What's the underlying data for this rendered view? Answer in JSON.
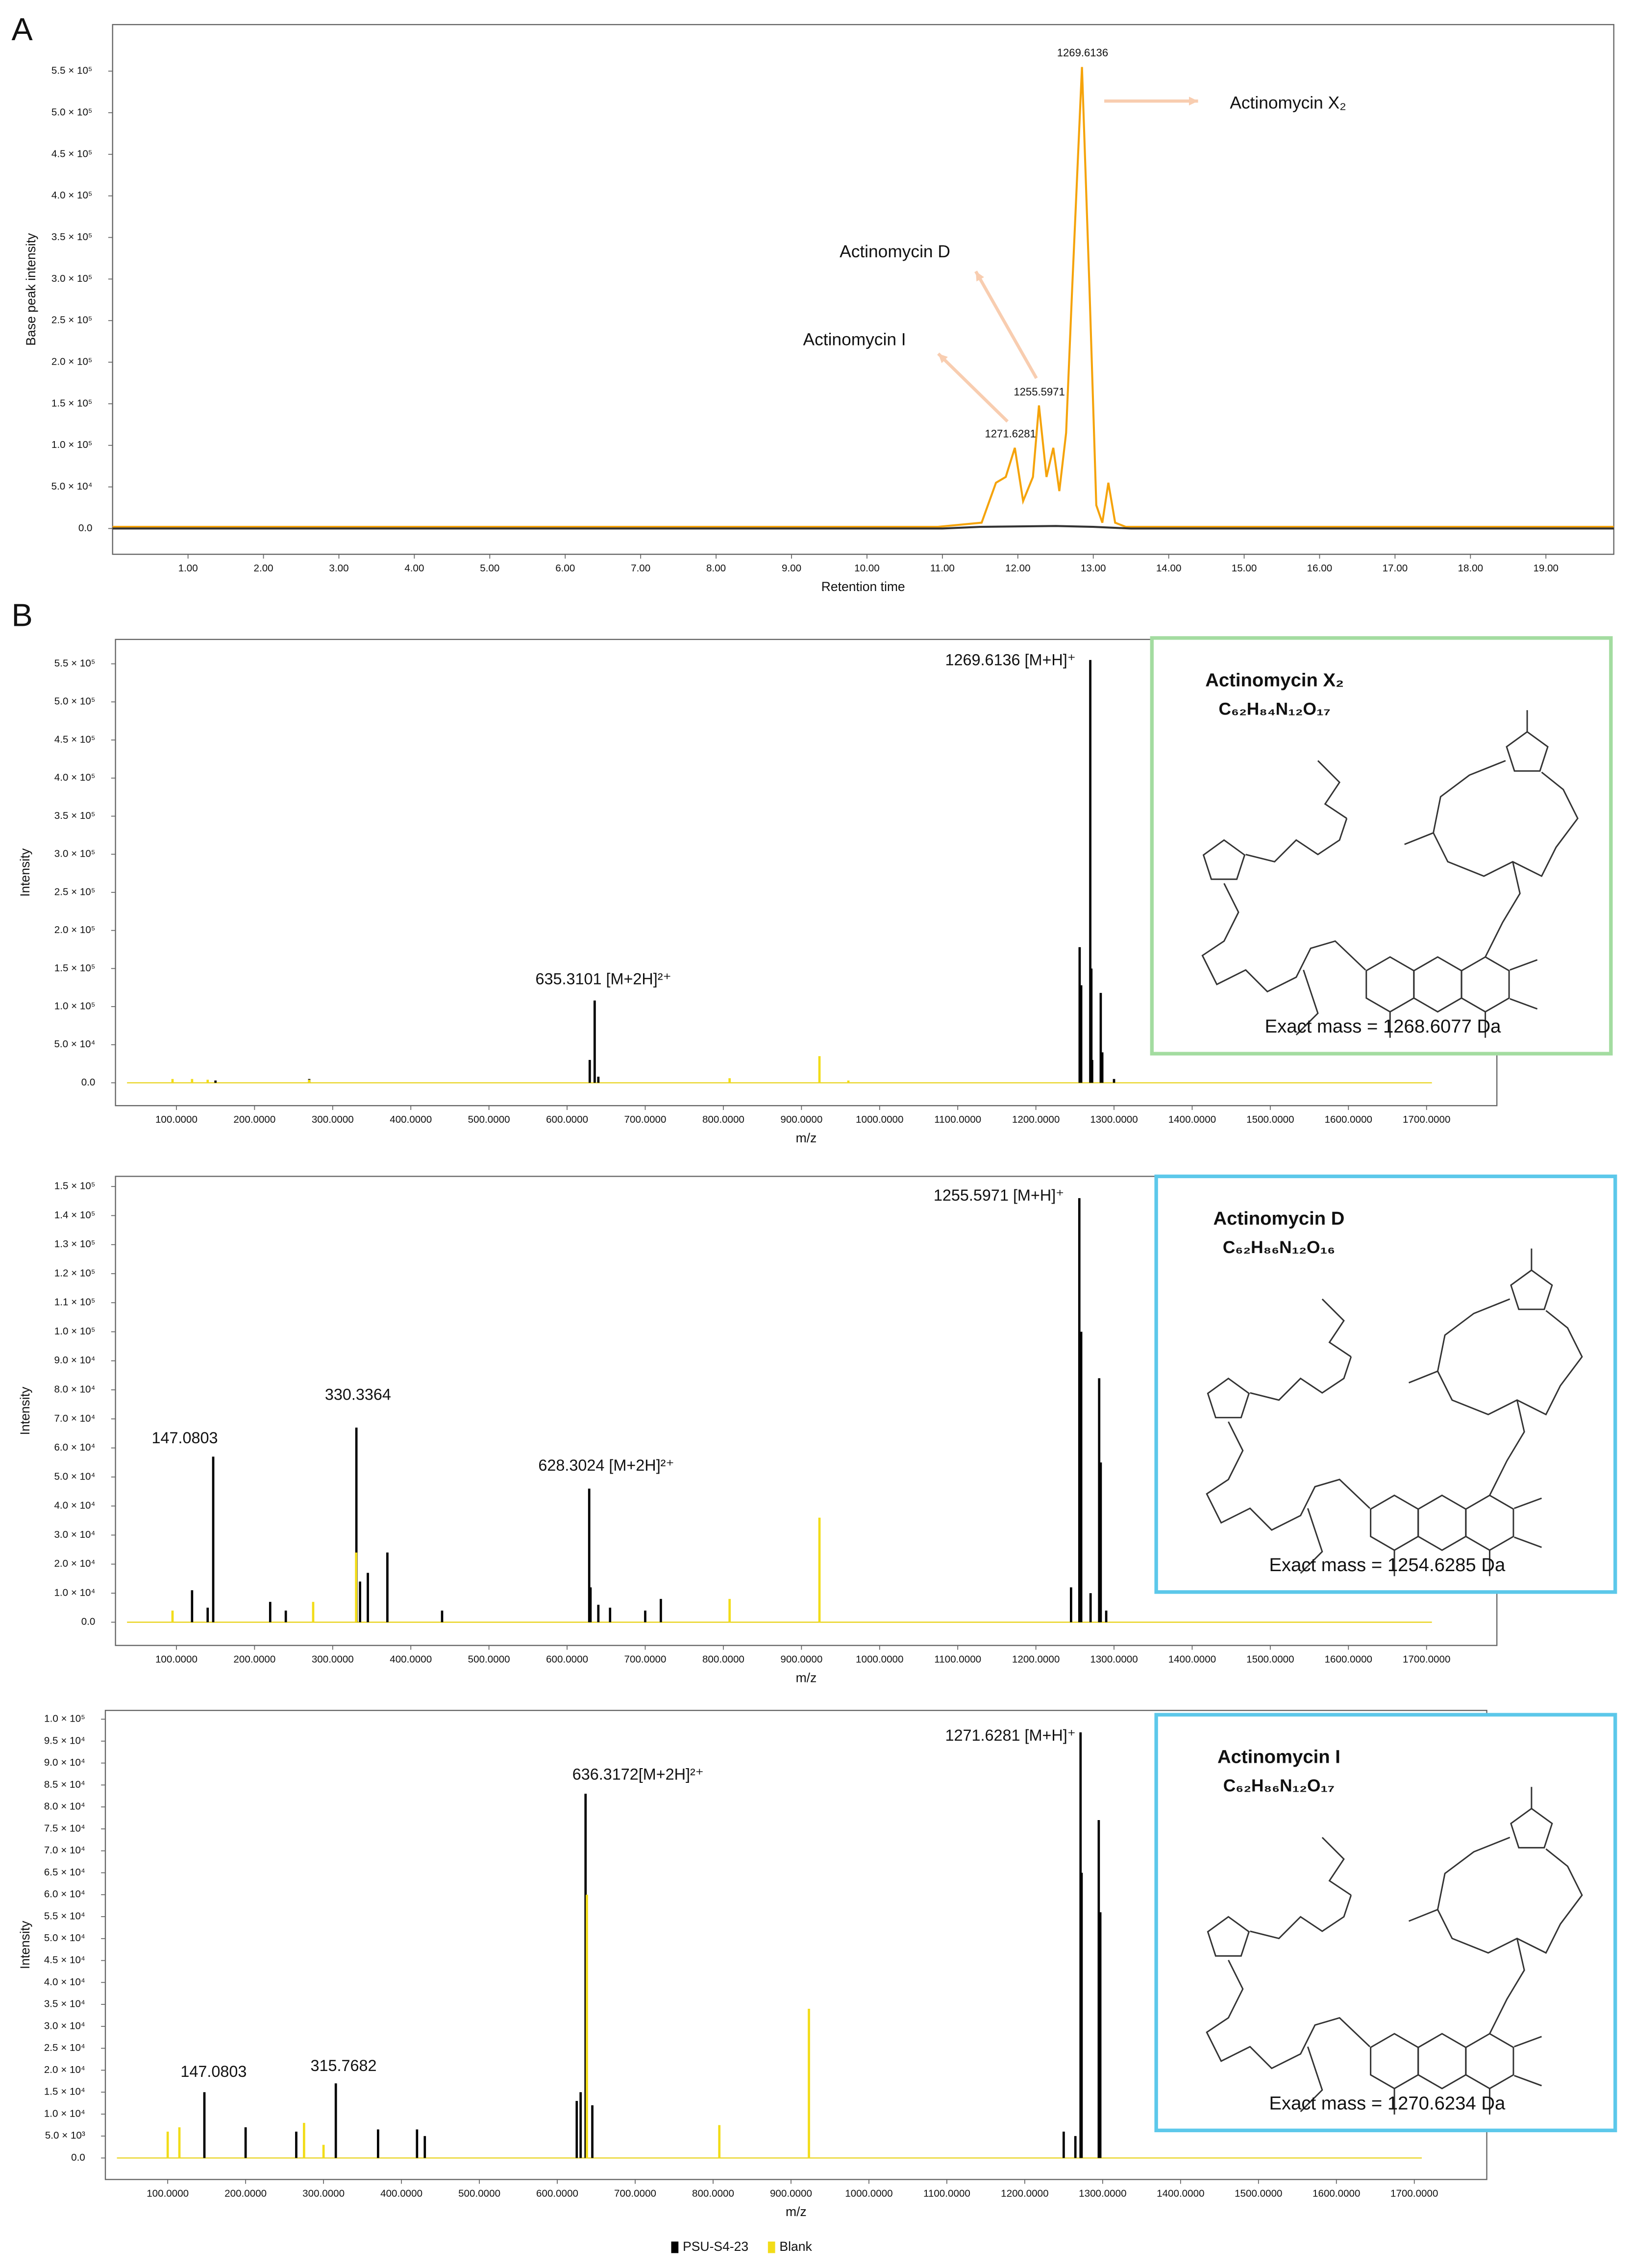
{
  "chart_data": [
    {
      "type": "line",
      "panel": "A",
      "xlabel": "Retention time",
      "ylabel": "Base peak intensity",
      "xlim": [
        0,
        19.9
      ],
      "ylim": [
        -31000,
        606000
      ],
      "xticks": [
        {
          "value": 1,
          "label": "1.00"
        },
        {
          "value": 2,
          "label": "2.00"
        },
        {
          "value": 3,
          "label": "3.00"
        },
        {
          "value": 4,
          "label": "4.00"
        },
        {
          "value": 5,
          "label": "5.00"
        },
        {
          "value": 6,
          "label": "6.00"
        },
        {
          "value": 7,
          "label": "7.00"
        },
        {
          "value": 8,
          "label": "8.00"
        },
        {
          "value": 9,
          "label": "9.00"
        },
        {
          "value": 10,
          "label": "10.00"
        },
        {
          "value": 11,
          "label": "11.00"
        },
        {
          "value": 12,
          "label": "12.00"
        },
        {
          "value": 13,
          "label": "13.00"
        },
        {
          "value": 14,
          "label": "14.00"
        },
        {
          "value": 15,
          "label": "15.00"
        },
        {
          "value": 16,
          "label": "16.00"
        },
        {
          "value": 17,
          "label": "17.00"
        },
        {
          "value": 18,
          "label": "18.00"
        },
        {
          "value": 19,
          "label": "19.00"
        }
      ],
      "yticks": [
        {
          "value": 0,
          "label": "0.0"
        },
        {
          "value": 50000,
          "label": "5.0 × 10⁴"
        },
        {
          "value": 100000,
          "label": "1.0 × 10⁵"
        },
        {
          "value": 150000,
          "label": "1.5 × 10⁵"
        },
        {
          "value": 200000,
          "label": "2.0 × 10⁵"
        },
        {
          "value": 250000,
          "label": "2.5 × 10⁵"
        },
        {
          "value": 300000,
          "label": "3.0 × 10⁵"
        },
        {
          "value": 350000,
          "label": "3.5 × 10⁵"
        },
        {
          "value": 400000,
          "label": "4.0 × 10⁵"
        },
        {
          "value": 450000,
          "label": "4.5 × 10⁵"
        },
        {
          "value": 500000,
          "label": "5.0 × 10⁵"
        },
        {
          "value": 550000,
          "label": "5.5 × 10⁵"
        }
      ],
      "series": [
        {
          "color": "#f5a30a",
          "x": [
            0,
            10.94,
            11.52,
            11.71,
            11.84,
            11.96,
            12.07,
            12.2,
            12.28,
            12.38,
            12.47,
            12.55,
            12.64,
            12.72,
            12.85,
            12.95,
            13.04,
            13.12,
            13.2,
            13.29,
            13.43,
            19.9
          ],
          "values": [
            2000,
            2000,
            7000,
            55000,
            62000,
            97000,
            33000,
            62000,
            148000,
            62000,
            97000,
            45000,
            115000,
            288000,
            555000,
            288000,
            28000,
            7000,
            55000,
            7000,
            2000,
            2000
          ]
        },
        {
          "color": "#333333",
          "x": [
            0,
            11,
            11.5,
            12.5,
            13,
            13.5,
            19.9
          ],
          "values": [
            0,
            0,
            2000,
            3000,
            2000,
            0,
            0
          ]
        }
      ],
      "annotations": [
        "1269.6136",
        "1255.5971",
        "1271.6281",
        "Actinomycin D",
        "Actinomycin I",
        "Actinomycin X₂"
      ]
    },
    {
      "type": "spectrum",
      "panel": "B",
      "xlabel": "m/z",
      "ylabel": "Intensity",
      "xlim": [
        22,
        1790
      ],
      "ylim": [
        -30000,
        582000
      ],
      "xticks": [
        {
          "value": 100,
          "label": "100.0000"
        },
        {
          "value": 200,
          "label": "200.0000"
        },
        {
          "value": 300,
          "label": "300.0000"
        },
        {
          "value": 400,
          "label": "400.0000"
        },
        {
          "value": 500,
          "label": "500.0000"
        },
        {
          "value": 600,
          "label": "600.0000"
        },
        {
          "value": 700,
          "label": "700.0000"
        },
        {
          "value": 800,
          "label": "800.0000"
        },
        {
          "value": 900,
          "label": "900.0000"
        },
        {
          "value": 1000,
          "label": "1000.0000"
        },
        {
          "value": 1100,
          "label": "1100.0000"
        },
        {
          "value": 1200,
          "label": "1200.0000"
        },
        {
          "value": 1300,
          "label": "1300.0000"
        },
        {
          "value": 1400,
          "label": "1400.0000"
        },
        {
          "value": 1500,
          "label": "1500.0000"
        },
        {
          "value": 1600,
          "label": "1600.0000"
        },
        {
          "value": 1700,
          "label": "1700.0000"
        }
      ],
      "yticks": [
        {
          "value": 0,
          "label": "0.0"
        },
        {
          "value": 50000,
          "label": "5.0 × 10⁴"
        },
        {
          "value": 100000,
          "label": "1.0 × 10⁵"
        },
        {
          "value": 150000,
          "label": "1.5 × 10⁵"
        },
        {
          "value": 200000,
          "label": "2.0 × 10⁵"
        },
        {
          "value": 250000,
          "label": "2.5 × 10⁵"
        },
        {
          "value": 300000,
          "label": "3.0 × 10⁵"
        },
        {
          "value": 350000,
          "label": "3.5 × 10⁵"
        },
        {
          "value": 400000,
          "label": "4.0 × 10⁵"
        },
        {
          "value": 450000,
          "label": "4.5 × 10⁵"
        },
        {
          "value": 500000,
          "label": "5.0 × 10⁵"
        },
        {
          "value": 550000,
          "label": "5.5 × 10⁵"
        }
      ],
      "series": [
        {
          "color": "#000000",
          "x": [
            150,
            270,
            629,
            635.31,
            640,
            1256,
            1258,
            1269.61,
            1271,
            1272,
            1283,
            1285,
            1300
          ],
          "values": [
            3000,
            5000,
            30000,
            108000,
            8000,
            178000,
            128000,
            555000,
            150000,
            30000,
            118000,
            40000,
            5000
          ]
        },
        {
          "color": "#f2dc18",
          "x": [
            95,
            120,
            140,
            270,
            808,
            923,
            960
          ],
          "values": [
            5000,
            5000,
            4000,
            4000,
            6000,
            35000,
            3000
          ]
        }
      ],
      "annotations": [
        "1269.6136 [M+H]⁺",
        "635.3101 [M+2H]²⁺"
      ],
      "structure": {
        "name": "Actinomycin X₂",
        "formula": "C₆₂H₈₄N₁₂O₁₇",
        "exact_mass": "Exact mass = 1268.6077 Da",
        "color": "#a3dca0"
      }
    },
    {
      "type": "spectrum",
      "xlabel": "m/z",
      "ylabel": "Intensity",
      "xlim": [
        22,
        1790
      ],
      "ylim": [
        -8000,
        153500
      ],
      "xticks": [
        {
          "value": 100,
          "label": "100.0000"
        },
        {
          "value": 200,
          "label": "200.0000"
        },
        {
          "value": 300,
          "label": "300.0000"
        },
        {
          "value": 400,
          "label": "400.0000"
        },
        {
          "value": 500,
          "label": "500.0000"
        },
        {
          "value": 600,
          "label": "600.0000"
        },
        {
          "value": 700,
          "label": "700.0000"
        },
        {
          "value": 800,
          "label": "800.0000"
        },
        {
          "value": 900,
          "label": "900.0000"
        },
        {
          "value": 1000,
          "label": "1000.0000"
        },
        {
          "value": 1100,
          "label": "1100.0000"
        },
        {
          "value": 1200,
          "label": "1200.0000"
        },
        {
          "value": 1300,
          "label": "1300.0000"
        },
        {
          "value": 1400,
          "label": "1400.0000"
        },
        {
          "value": 1500,
          "label": "1500.0000"
        },
        {
          "value": 1600,
          "label": "1600.0000"
        },
        {
          "value": 1700,
          "label": "1700.0000"
        }
      ],
      "yticks": [
        {
          "value": 0,
          "label": "0.0"
        },
        {
          "value": 10000,
          "label": "1.0 × 10⁴"
        },
        {
          "value": 20000,
          "label": "2.0 × 10⁴"
        },
        {
          "value": 30000,
          "label": "3.0 × 10⁴"
        },
        {
          "value": 40000,
          "label": "4.0 × 10⁴"
        },
        {
          "value": 50000,
          "label": "5.0 × 10⁴"
        },
        {
          "value": 60000,
          "label": "6.0 × 10⁴"
        },
        {
          "value": 70000,
          "label": "7.0 × 10⁴"
        },
        {
          "value": 80000,
          "label": "8.0 × 10⁴"
        },
        {
          "value": 90000,
          "label": "9.0 × 10⁴"
        },
        {
          "value": 100000,
          "label": "1.0 × 10⁵"
        },
        {
          "value": 110000,
          "label": "1.1 × 10⁵"
        },
        {
          "value": 120000,
          "label": "1.2 × 10⁵"
        },
        {
          "value": 130000,
          "label": "1.3 × 10⁵"
        },
        {
          "value": 140000,
          "label": "1.4 × 10⁵"
        },
        {
          "value": 150000,
          "label": "1.5 × 10⁵"
        }
      ],
      "series": [
        {
          "color": "#000000",
          "x": [
            120,
            140,
            147.08,
            220,
            240,
            330.34,
            335,
            345,
            370,
            440,
            628.3,
            630,
            640,
            655,
            700,
            720,
            1245,
            1255.6,
            1258,
            1270,
            1281,
            1283,
            1290
          ],
          "values": [
            11000,
            5000,
            57000,
            7000,
            4000,
            67000,
            14000,
            17000,
            24000,
            4000,
            46000,
            12000,
            6000,
            5000,
            4000,
            8000,
            12000,
            146000,
            100000,
            10000,
            84000,
            55000,
            4000
          ]
        },
        {
          "color": "#f2dc18",
          "x": [
            95,
            275,
            330,
            808,
            923
          ],
          "values": [
            4000,
            7000,
            24000,
            8000,
            36000
          ]
        }
      ],
      "annotations": [
        "1255.5971 [M+H]⁺",
        "147.0803",
        "330.3364",
        "628.3024 [M+2H]²⁺"
      ],
      "structure": {
        "name": "Actinomycin D",
        "formula": "C₆₂H₈₆N₁₂O₁₆",
        "exact_mass": "Exact mass = 1254.6285 Da",
        "color": "#5cc8ea"
      }
    },
    {
      "type": "spectrum",
      "xlabel": "m/z",
      "ylabel": "Intensity",
      "xlim": [
        20,
        1793
      ],
      "ylim": [
        -4900,
        102000
      ],
      "xticks": [
        {
          "value": 100,
          "label": "100.0000"
        },
        {
          "value": 200,
          "label": "200.0000"
        },
        {
          "value": 300,
          "label": "300.0000"
        },
        {
          "value": 400,
          "label": "400.0000"
        },
        {
          "value": 500,
          "label": "500.0000"
        },
        {
          "value": 600,
          "label": "600.0000"
        },
        {
          "value": 700,
          "label": "700.0000"
        },
        {
          "value": 800,
          "label": "800.0000"
        },
        {
          "value": 900,
          "label": "900.0000"
        },
        {
          "value": 1000,
          "label": "1000.0000"
        },
        {
          "value": 1100,
          "label": "1100.0000"
        },
        {
          "value": 1200,
          "label": "1200.0000"
        },
        {
          "value": 1300,
          "label": "1300.0000"
        },
        {
          "value": 1400,
          "label": "1400.0000"
        },
        {
          "value": 1500,
          "label": "1500.0000"
        },
        {
          "value": 1600,
          "label": "1600.0000"
        },
        {
          "value": 1700,
          "label": "1700.0000"
        }
      ],
      "yticks": [
        {
          "value": 0,
          "label": "0.0"
        },
        {
          "value": 5000,
          "label": "5.0 × 10³"
        },
        {
          "value": 10000,
          "label": "1.0 × 10⁴"
        },
        {
          "value": 15000,
          "label": "1.5 × 10⁴"
        },
        {
          "value": 20000,
          "label": "2.0 × 10⁴"
        },
        {
          "value": 25000,
          "label": "2.5 × 10⁴"
        },
        {
          "value": 30000,
          "label": "3.0 × 10⁴"
        },
        {
          "value": 35000,
          "label": "3.5 × 10⁴"
        },
        {
          "value": 40000,
          "label": "4.0 × 10⁴"
        },
        {
          "value": 45000,
          "label": "4.5 × 10⁴"
        },
        {
          "value": 50000,
          "label": "5.0 × 10⁴"
        },
        {
          "value": 55000,
          "label": "5.5 × 10⁴"
        },
        {
          "value": 60000,
          "label": "6.0 × 10⁴"
        },
        {
          "value": 65000,
          "label": "6.5 × 10⁴"
        },
        {
          "value": 70000,
          "label": "7.0 × 10⁴"
        },
        {
          "value": 75000,
          "label": "7.5 × 10⁴"
        },
        {
          "value": 80000,
          "label": "8.0 × 10⁴"
        },
        {
          "value": 85000,
          "label": "8.5 × 10⁴"
        },
        {
          "value": 90000,
          "label": "9.0 × 10⁴"
        },
        {
          "value": 95000,
          "label": "9.5 × 10⁴"
        },
        {
          "value": 100000,
          "label": "1.0 × 10⁵"
        }
      ],
      "series": [
        {
          "name": "PSU-S4-23",
          "color": "#000000",
          "x": [
            147.08,
            200,
            265,
            315.77,
            370,
            420,
            430,
            625,
            630,
            636.32,
            645,
            1250,
            1265,
            1271.63,
            1273,
            1295,
            1297
          ],
          "values": [
            15000,
            7000,
            6000,
            17000,
            6500,
            6500,
            5000,
            13000,
            15000,
            83000,
            12000,
            6000,
            5000,
            97000,
            65000,
            77000,
            56000
          ]
        },
        {
          "name": "Blank",
          "color": "#f2dc18",
          "x": [
            100,
            115,
            275,
            300,
            638,
            808,
            923
          ],
          "values": [
            6000,
            7000,
            8000,
            3000,
            60000,
            7500,
            34000
          ]
        }
      ],
      "annotations": [
        "1271.6281 [M+H]⁺",
        "636.3172[M+2H]²⁺",
        "147.0803",
        "315.7682"
      ],
      "structure": {
        "name": "Actinomycin I",
        "formula": "C₆₂H₈₆N₁₂O₁₇",
        "exact_mass": "Exact mass = 1270.6234 Da",
        "color": "#5cc8ea"
      }
    }
  ]
}
